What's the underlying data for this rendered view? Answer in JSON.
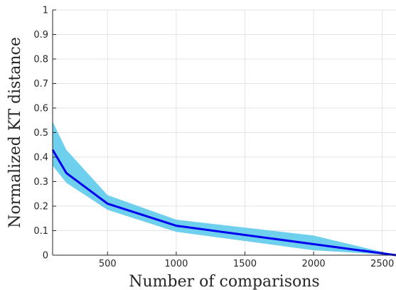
{
  "chart_data": {
    "type": "line",
    "title": "",
    "xlabel": "Number of comparisons",
    "ylabel": "Normalized KT distance",
    "xlim": [
      100,
      2600
    ],
    "ylim": [
      0,
      1
    ],
    "grid": true,
    "xticks": [
      500,
      1000,
      1500,
      2000,
      2500
    ],
    "yticks": [
      0,
      0.1,
      0.2,
      0.3,
      0.4,
      0.5,
      0.6,
      0.7,
      0.8,
      0.9,
      1
    ],
    "ytick_labels": [
      "0",
      "0.1",
      "0.2",
      "0.3",
      "0.4",
      "0.5",
      "0.6",
      "0.7",
      "0.8",
      "0.9",
      "1"
    ],
    "series": [
      {
        "x": [
          100,
          200,
          500,
          1000,
          2000,
          2600
        ],
        "values": [
          0.43,
          0.335,
          0.21,
          0.12,
          0.045,
          0.0
        ],
        "upper": [
          0.545,
          0.43,
          0.245,
          0.145,
          0.08,
          0.0
        ],
        "lower": [
          0.365,
          0.295,
          0.185,
          0.095,
          0.02,
          0.0
        ],
        "line_color": "#0000ee",
        "band_color": "#6fd0ee"
      }
    ]
  }
}
